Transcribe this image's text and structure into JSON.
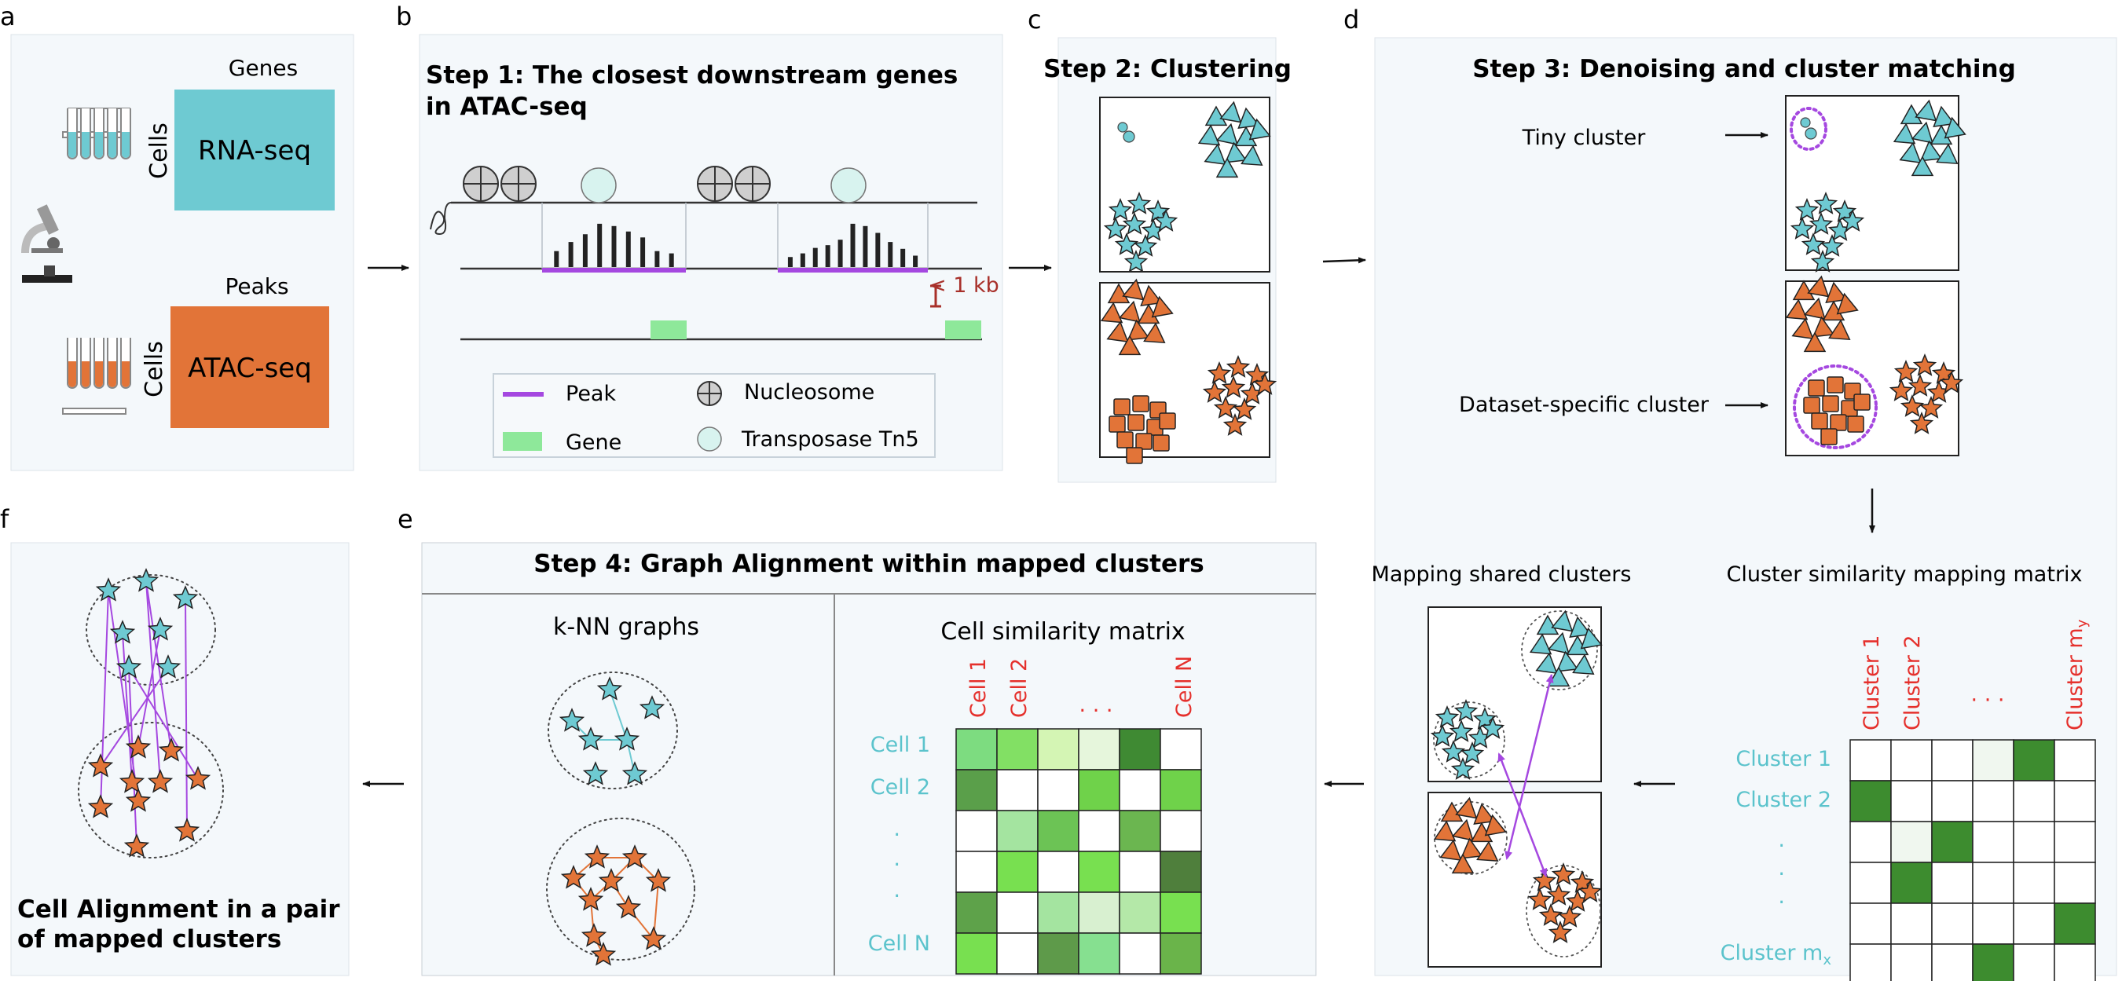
{
  "colors": {
    "panel_bg": "#f4f8fb",
    "panel_border": "#dde3e8",
    "cyan": "#6ecad2",
    "orange": "#e27438",
    "purple": "#a548e0",
    "gene_green": "#8ee89a",
    "dark_red": "#a8302a",
    "red_label": "#e5302c",
    "teal_text": "#5bc3cc",
    "dark_green": "#3d8c2f",
    "nucleosome_gray": "#cfcfcf",
    "tn5_fill": "#d8f3ef"
  },
  "panel_a": {
    "letter": "a",
    "genes_label": "Genes",
    "peaks_label": "Peaks",
    "cells_label_top": "Cells",
    "cells_label_bottom": "Cells",
    "rna_label": "RNA-seq",
    "atac_label": "ATAC-seq",
    "icons": [
      "test-tubes-cyan-icon",
      "microscope-icon",
      "test-tubes-orange-icon"
    ]
  },
  "panel_b": {
    "letter": "b",
    "title_line1": "Step 1: The closest downstream genes",
    "title_line2": "in ATAC-seq",
    "distance_label": "< 1 kb",
    "legend": {
      "peak": "Peak",
      "gene": "Gene",
      "nucleosome": "Nucleosome",
      "tn5": "Transposase Tn5"
    },
    "peak_bar_values_1": [
      0.35,
      0.55,
      0.72,
      0.95,
      0.9,
      0.78,
      0.65,
      0.35,
      0.3
    ],
    "peak_bar_values_2": [
      0.22,
      0.3,
      0.42,
      0.48,
      0.6,
      0.95,
      0.9,
      0.75,
      0.55,
      0.4,
      0.25
    ]
  },
  "panel_c": {
    "letter": "c",
    "title": "Step 2: Clustering"
  },
  "panel_d": {
    "letter": "d",
    "title": "Step 3: Denoising and cluster matching",
    "tiny_cluster": "Tiny cluster",
    "dataset_specific": "Dataset-specific cluster",
    "mapping_shared": "Mapping shared clusters",
    "similarity_matrix_title": "Cluster similarity mapping matrix",
    "col_labels": [
      "Cluster 1",
      "Cluster 2",
      "· · ·",
      "Cluster m"
    ],
    "col_last_sub": "y",
    "row_labels": [
      "Cluster 1",
      "Cluster 2",
      ".",
      ".",
      ".",
      "Cluster m"
    ],
    "row_last_sub": "x",
    "matrix": [
      [
        0,
        0,
        0,
        0.02,
        1,
        0
      ],
      [
        1,
        0,
        0,
        0,
        0,
        0
      ],
      [
        0,
        0.03,
        1,
        0,
        0,
        0
      ],
      [
        0,
        1,
        0,
        0,
        0,
        0
      ],
      [
        0,
        0,
        0,
        0,
        0,
        1
      ],
      [
        0,
        0,
        0,
        1,
        0,
        0
      ]
    ]
  },
  "panel_e": {
    "letter": "e",
    "title": "Step 4: Graph Alignment within mapped clusters",
    "knn_title": "k-NN graphs",
    "cell_sim_title": "Cell similarity matrix",
    "col_labels": [
      "Cell 1",
      "Cell 2",
      ". . .",
      "Cell N"
    ],
    "row_labels": [
      "Cell 1",
      "Cell 2",
      ".",
      ".",
      ".",
      "Cell N"
    ],
    "matrix_colors": [
      [
        "#7ddc80",
        "#82e064",
        "#d4f5b4",
        "#e6f6dc",
        "#3f8a33",
        "#ffffff"
      ],
      [
        "#5a9f4a",
        "#ffffff",
        "#ffffff",
        "#6fd24a",
        "#ffffff",
        "#6fd24a"
      ],
      [
        "#ffffff",
        "#a4e4a0",
        "#6cc355",
        "#ffffff",
        "#6bb650",
        "#ffffff"
      ],
      [
        "#ffffff",
        "#78e050",
        "#ffffff",
        "#78e050",
        "#ffffff",
        "#4f7f3c"
      ],
      [
        "#5ea24a",
        "#ffffff",
        "#a4e4a0",
        "#d8f0d0",
        "#b4e8a8",
        "#78e050"
      ],
      [
        "#78e050",
        "#ffffff",
        "#5e9a4a",
        "#86e090",
        "#ffffff",
        "#6ab44a"
      ]
    ]
  },
  "panel_f": {
    "letter": "f",
    "caption_line1": "Cell Alignment in a pair",
    "caption_line2": "of mapped clusters"
  }
}
